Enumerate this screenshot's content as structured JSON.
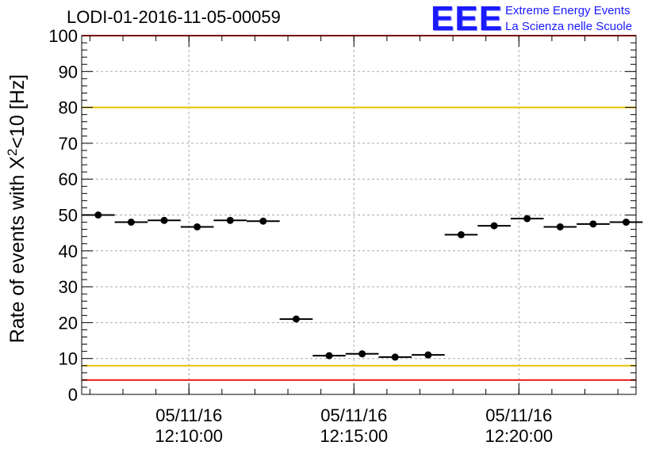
{
  "chart_data": {
    "type": "scatter",
    "title": "LODI-01-2016-11-05-00059",
    "ylabel": "Rate of events with X²<10 [Hz]",
    "ylabel_parts": {
      "before": "Rate of events with X",
      "sup": "2",
      "after": "<10 [Hz]"
    },
    "xlabel": "",
    "ylim": [
      0,
      100
    ],
    "y_ticks": [
      0,
      10,
      20,
      30,
      40,
      50,
      60,
      70,
      80,
      90,
      100
    ],
    "x_ticks": [
      {
        "t": 10,
        "date": "05/11/16",
        "time": "12:10:00"
      },
      {
        "t": 15,
        "date": "05/11/16",
        "time": "12:15:00"
      },
      {
        "t": 20,
        "date": "05/11/16",
        "time": "12:20:00"
      }
    ],
    "x_unit": "minutes past 12:00 on 05/11/16",
    "xlim": [
      6.75,
      23.55
    ],
    "grid": true,
    "reference_lines": [
      {
        "y": 100,
        "color": "#ee1c1c"
      },
      {
        "y": 80,
        "color": "#e8c400"
      },
      {
        "y": 8,
        "color": "#e8c400"
      },
      {
        "y": 4,
        "color": "#ee1c1c"
      }
    ],
    "bin_width": 0.5,
    "series": [
      {
        "marker": "circle",
        "color": "#000000",
        "x": [
          7.25,
          7.75,
          8.25,
          8.75,
          9.25,
          9.75,
          10.25,
          10.75,
          11.25,
          11.75,
          12.25,
          12.75,
          13.25,
          13.75,
          14.25,
          14.75,
          15.25,
          15.75,
          16.25,
          16.75,
          17.25,
          17.75,
          18.25,
          18.75,
          19.25,
          19.75,
          20.25,
          20.75,
          21.25,
          21.75,
          22.25,
          22.75,
          23.25
        ],
        "y": [
          50.0,
          null,
          48.0,
          null,
          48.5,
          null,
          46.7,
          null,
          48.5,
          null,
          48.3,
          null,
          21.0,
          null,
          10.8,
          null,
          11.3,
          null,
          10.4,
          null,
          11.0,
          null,
          44.5,
          null,
          47.0,
          null,
          49.0,
          null,
          46.7,
          null,
          47.5,
          null,
          48.0
        ]
      }
    ]
  },
  "logo": {
    "mark": "EEE",
    "line1": "Extreme Energy Events",
    "line2": "La Scienza nelle Scuole",
    "color": "#1a1aff"
  }
}
